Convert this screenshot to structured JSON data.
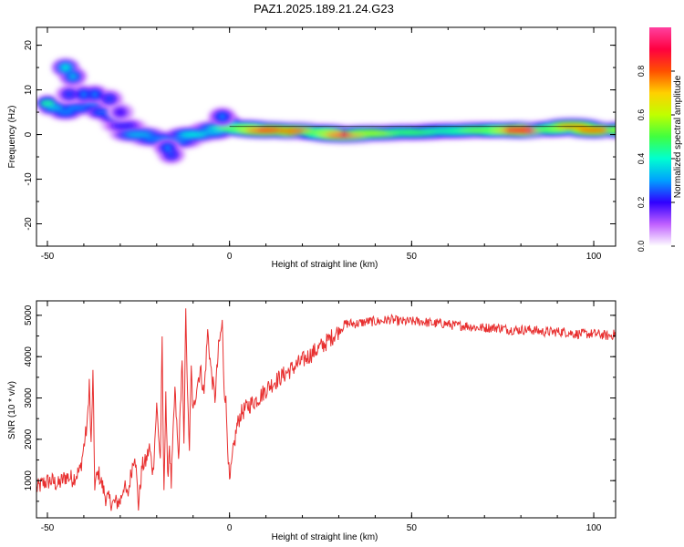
{
  "chart_data": [
    {
      "type": "heatmap",
      "title": "PAZ1.2025.189.21.24.G23",
      "xlabel": "Height of straight line (km)",
      "ylabel": "Frequency (Hz)",
      "xlim": [
        -53,
        106
      ],
      "ylim": [
        -25,
        24
      ],
      "xticks": [
        -50,
        0,
        50,
        100
      ],
      "yticks": [
        -20,
        -10,
        0,
        10,
        20
      ],
      "colorbar": {
        "label": "Normalized spectral amplitude",
        "range": [
          0,
          1
        ],
        "ticks": [
          0.0,
          0.2,
          0.4,
          0.6,
          0.8
        ],
        "tick_labels": [
          "0.0",
          "0.2",
          "0.4",
          "0.6",
          "0.8"
        ],
        "colors": [
          "#ffffff",
          "#c060ff",
          "#3000ff",
          "#00a0ff",
          "#00ffd0",
          "#40ff40",
          "#c0ff00",
          "#ffd000",
          "#ff5000",
          "#ff0040",
          "#ff40a0"
        ]
      },
      "ridge": [
        {
          "x": -50,
          "y": 7,
          "amp": 0.45
        },
        {
          "x": -48,
          "y": 6,
          "amp": 0.35
        },
        {
          "x": -45,
          "y": 5,
          "amp": 0.3
        },
        {
          "x": -42,
          "y": 6,
          "amp": 0.3
        },
        {
          "x": -38,
          "y": 7,
          "amp": 0.3
        },
        {
          "x": -35,
          "y": 5,
          "amp": 0.28
        },
        {
          "x": -32,
          "y": 4,
          "amp": 0.25
        },
        {
          "x": -29,
          "y": 2,
          "amp": 0.22
        },
        {
          "x": -25,
          "y": 0,
          "amp": 0.35
        },
        {
          "x": -20,
          "y": -1,
          "amp": 0.3
        },
        {
          "x": -15,
          "y": -1.5,
          "amp": 0.3
        },
        {
          "x": -10,
          "y": 0,
          "amp": 0.4
        },
        {
          "x": -5,
          "y": 0.5,
          "amp": 0.35
        },
        {
          "x": -1,
          "y": 2.5,
          "amp": 0.4
        },
        {
          "x": 2,
          "y": 1.5,
          "amp": 0.55
        },
        {
          "x": 10,
          "y": 1,
          "amp": 0.85
        },
        {
          "x": 18,
          "y": 0.8,
          "amp": 0.8
        },
        {
          "x": 25,
          "y": 0.5,
          "amp": 0.55
        },
        {
          "x": 32,
          "y": 0,
          "amp": 0.9
        },
        {
          "x": 40,
          "y": 0.3,
          "amp": 0.6
        },
        {
          "x": 50,
          "y": 0.5,
          "amp": 0.5
        },
        {
          "x": 60,
          "y": 0.8,
          "amp": 0.45
        },
        {
          "x": 70,
          "y": 1,
          "amp": 0.55
        },
        {
          "x": 80,
          "y": 1,
          "amp": 0.9
        },
        {
          "x": 88,
          "y": 1.2,
          "amp": 0.55
        },
        {
          "x": 94,
          "y": 1.8,
          "amp": 0.75
        },
        {
          "x": 100,
          "y": 1,
          "amp": 0.8
        },
        {
          "x": 106,
          "y": 1,
          "amp": 0.6
        }
      ],
      "blobs": [
        {
          "x": -45,
          "y": 15,
          "amp": 0.4
        },
        {
          "x": -43,
          "y": 13,
          "amp": 0.35
        },
        {
          "x": -40,
          "y": 9,
          "amp": 0.3
        },
        {
          "x": -37,
          "y": 9,
          "amp": 0.3
        },
        {
          "x": -33,
          "y": 8,
          "amp": 0.25
        },
        {
          "x": -30,
          "y": 5,
          "amp": 0.2
        },
        {
          "x": -17,
          "y": -3,
          "amp": 0.3
        },
        {
          "x": -16,
          "y": -4.5,
          "amp": 0.25
        },
        {
          "x": -44,
          "y": 9,
          "amp": 0.25
        },
        {
          "x": -2,
          "y": 4,
          "amp": 0.3
        }
      ]
    },
    {
      "type": "line",
      "xlabel": "Height of straight line (km)",
      "ylabel": "SNR (10 * v/v)",
      "xlim": [
        -53,
        106
      ],
      "ylim": [
        100,
        5350
      ],
      "xticks": [
        -50,
        0,
        50,
        100
      ],
      "yticks": [
        1000,
        2000,
        3000,
        4000,
        5000
      ],
      "line_color": "#e83030",
      "series": [
        {
          "x": [
            -53,
            -51,
            -49,
            -47,
            -45,
            -43,
            -41,
            -39,
            -38.5,
            -38,
            -37.5,
            -37,
            -36,
            -34,
            -32,
            -30,
            -29,
            -28,
            -27,
            -26,
            -25,
            -24,
            -23,
            -22,
            -21,
            -20,
            -19,
            -18.5,
            -18,
            -17.5,
            -17,
            -16.5,
            -16,
            -15,
            -14,
            -13,
            -12.5,
            -12,
            -11.5,
            -11,
            -10.5,
            -10,
            -9,
            -8,
            -7,
            -6,
            -5,
            -4,
            -3,
            -2,
            -1.5,
            -1,
            -0.5,
            0,
            1,
            2,
            3,
            5,
            8,
            11,
            14,
            17,
            20,
            23,
            26,
            29,
            32,
            35,
            38,
            41,
            44,
            47,
            50,
            53,
            56,
            59,
            62,
            65,
            68,
            71,
            74,
            77,
            80,
            83,
            86,
            89,
            92,
            95,
            98,
            101,
            104,
            106
          ],
          "y": [
            800,
            950,
            1000,
            900,
            1100,
            1050,
            1250,
            2400,
            3400,
            1800,
            3550,
            900,
            1200,
            600,
            450,
            500,
            900,
            600,
            1200,
            1700,
            400,
            1350,
            1450,
            1800,
            1200,
            2800,
            1500,
            4300,
            600,
            3200,
            1000,
            1900,
            900,
            3200,
            1500,
            4000,
            1700,
            5300,
            2900,
            1800,
            3700,
            2600,
            3300,
            3700,
            3100,
            4600,
            3600,
            3000,
            4200,
            4800,
            3300,
            2900,
            1900,
            900,
            1700,
            2300,
            2600,
            2800,
            3000,
            3300,
            3500,
            3700,
            3900,
            4100,
            4300,
            4550,
            4800,
            4800,
            4850,
            4850,
            4900,
            4850,
            4850,
            4850,
            4800,
            4800,
            4750,
            4750,
            4700,
            4700,
            4700,
            4650,
            4650,
            4650,
            4600,
            4600,
            4600,
            4550,
            4550,
            4550,
            4500,
            4550
          ]
        }
      ]
    }
  ]
}
